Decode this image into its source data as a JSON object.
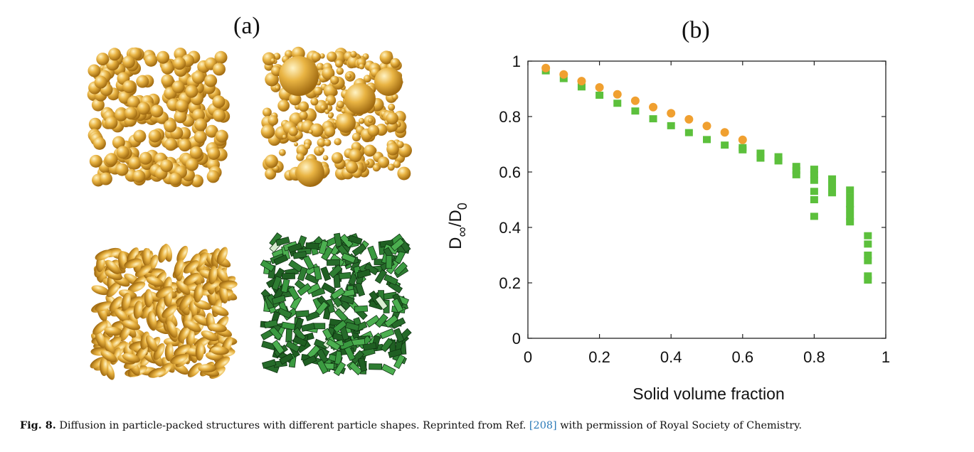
{
  "panels": {
    "a_label": "(a)",
    "b_label": "(b)"
  },
  "chart_data": {
    "type": "scatter",
    "xlabel": "Solid volume fraction",
    "ylabel": "D∞/D0",
    "ylabel_main": "D",
    "ylabel_sub1": "∞",
    "ylabel_mid": "/D",
    "ylabel_sub2": "0",
    "xlim": [
      0,
      1
    ],
    "ylim": [
      0,
      1
    ],
    "xticks": [
      "0",
      "0.2",
      "0.4",
      "0.6",
      "0.8",
      "1"
    ],
    "yticks": [
      "0",
      "0.2",
      "0.4",
      "0.6",
      "0.8",
      "1"
    ],
    "grid": false,
    "series": [
      {
        "marker": "circle",
        "color": "#f0a030",
        "points": [
          [
            0.05,
            0.975
          ],
          [
            0.1,
            0.952
          ],
          [
            0.15,
            0.928
          ],
          [
            0.2,
            0.905
          ],
          [
            0.25,
            0.88
          ],
          [
            0.3,
            0.857
          ],
          [
            0.35,
            0.834
          ],
          [
            0.4,
            0.812
          ],
          [
            0.45,
            0.79
          ],
          [
            0.5,
            0.766
          ],
          [
            0.55,
            0.743
          ],
          [
            0.6,
            0.716
          ]
        ]
      },
      {
        "marker": "square",
        "color": "#5cc03c",
        "points": [
          [
            0.05,
            0.965
          ],
          [
            0.1,
            0.937
          ],
          [
            0.15,
            0.907
          ],
          [
            0.2,
            0.877
          ],
          [
            0.25,
            0.848
          ],
          [
            0.3,
            0.82
          ],
          [
            0.35,
            0.792
          ],
          [
            0.4,
            0.767
          ],
          [
            0.45,
            0.742
          ],
          [
            0.5,
            0.717
          ],
          [
            0.55,
            0.697
          ],
          [
            0.6,
            0.68
          ],
          [
            0.6,
            0.688
          ],
          [
            0.65,
            0.65
          ],
          [
            0.65,
            0.668
          ],
          [
            0.7,
            0.64
          ],
          [
            0.7,
            0.655
          ],
          [
            0.75,
            0.59
          ],
          [
            0.75,
            0.605
          ],
          [
            0.75,
            0.62
          ],
          [
            0.8,
            0.44
          ],
          [
            0.8,
            0.5
          ],
          [
            0.8,
            0.53
          ],
          [
            0.8,
            0.57
          ],
          [
            0.8,
            0.59
          ],
          [
            0.8,
            0.61
          ],
          [
            0.85,
            0.525
          ],
          [
            0.85,
            0.55
          ],
          [
            0.85,
            0.575
          ],
          [
            0.9,
            0.42
          ],
          [
            0.9,
            0.44
          ],
          [
            0.9,
            0.465
          ],
          [
            0.9,
            0.485
          ],
          [
            0.9,
            0.51
          ],
          [
            0.9,
            0.535
          ],
          [
            0.95,
            0.21
          ],
          [
            0.95,
            0.225
          ],
          [
            0.95,
            0.28
          ],
          [
            0.95,
            0.3
          ],
          [
            0.95,
            0.34
          ],
          [
            0.95,
            0.37
          ]
        ]
      }
    ]
  },
  "caption": {
    "label": "Fig. 8.",
    "text_before": " Diffusion in particle-packed structures with different particle shapes. Reprinted from Ref. ",
    "ref": "[208]",
    "text_after": " with permission of Royal Society of Chemistry."
  },
  "colors": {
    "sphere": "#e8b040",
    "box": "#2e7d32"
  }
}
